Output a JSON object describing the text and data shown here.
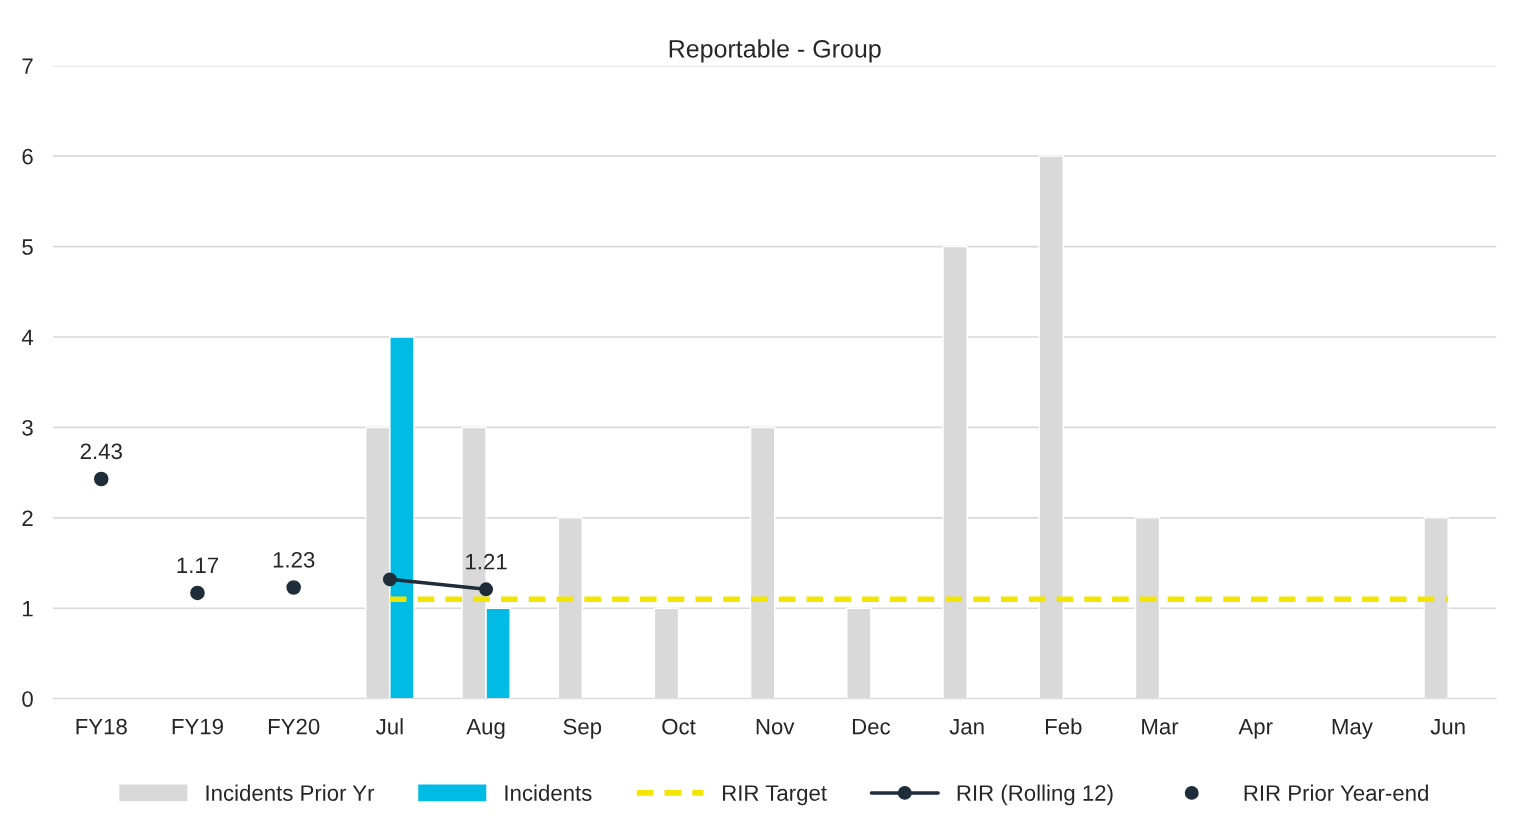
{
  "chart_data": {
    "type": "bar",
    "title": "Reportable - Group",
    "categories": [
      "FY18",
      "FY19",
      "FY20",
      "Jul",
      "Aug",
      "Sep",
      "Oct",
      "Nov",
      "Dec",
      "Jan",
      "Feb",
      "Mar",
      "Apr",
      "May",
      "Jun"
    ],
    "series": [
      {
        "name": "Incidents Prior Yr",
        "color": "#d9d9d9",
        "values": [
          null,
          null,
          null,
          3,
          3,
          2,
          1,
          3,
          1,
          5,
          6,
          2,
          null,
          null,
          2
        ]
      },
      {
        "name": "Incidents",
        "color": "#00bce4",
        "values": [
          null,
          null,
          null,
          4,
          1,
          null,
          null,
          null,
          null,
          null,
          null,
          null,
          null,
          null,
          null
        ]
      },
      {
        "name": "RIR Target",
        "type": "line",
        "line_style": "dashed",
        "marker": "none",
        "color": "#f2e600",
        "values": [
          null,
          null,
          null,
          1.1,
          1.1,
          1.1,
          1.1,
          1.1,
          1.1,
          1.1,
          1.1,
          1.1,
          1.1,
          1.1,
          1.1
        ]
      },
      {
        "name": "RIR (Rolling 12)",
        "type": "line",
        "line_style": "solid",
        "marker": "circle",
        "color": "#1f2d3a",
        "values": [
          null,
          null,
          null,
          1.32,
          1.21,
          null,
          null,
          null,
          null,
          null,
          null,
          null,
          null,
          null,
          null
        ],
        "value_labels": [
          null,
          null,
          null,
          null,
          "1.21",
          null,
          null,
          null,
          null,
          null,
          null,
          null,
          null,
          null,
          null
        ]
      },
      {
        "name": "RIR Prior Year-end",
        "type": "scatter",
        "marker": "circle",
        "color": "#1f2d3a",
        "values": [
          2.43,
          1.17,
          1.23,
          null,
          null,
          null,
          null,
          null,
          null,
          null,
          null,
          null,
          null,
          null,
          null
        ],
        "value_labels": [
          "2.43",
          "1.17",
          "1.23",
          null,
          null,
          null,
          null,
          null,
          null,
          null,
          null,
          null,
          null,
          null,
          null
        ]
      }
    ],
    "ylim": [
      0,
      7
    ],
    "yticks": [
      0,
      1,
      2,
      3,
      4,
      5,
      6,
      7
    ],
    "grid": "y",
    "legend": "bottom"
  }
}
